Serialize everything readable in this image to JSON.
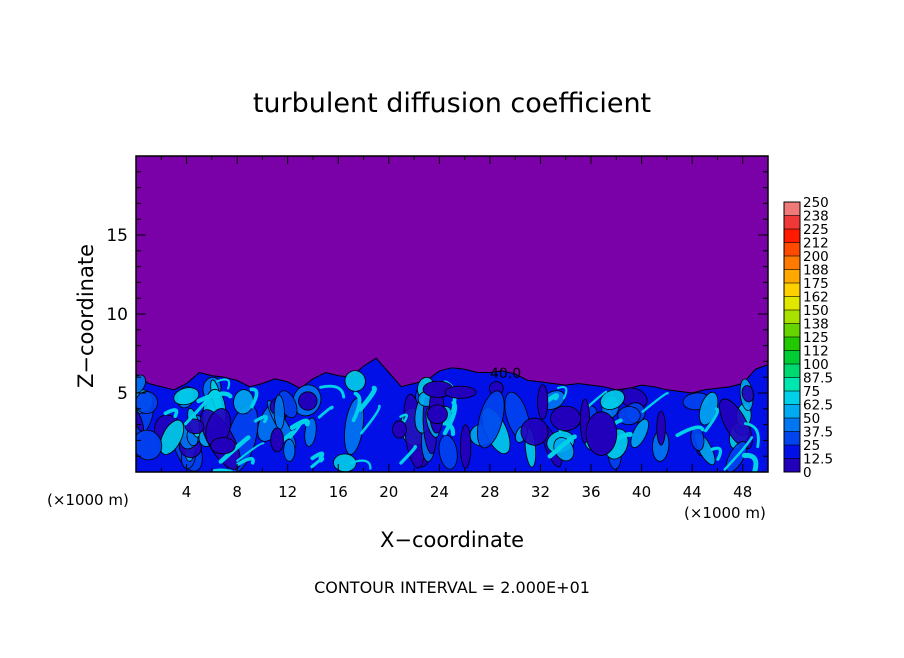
{
  "chart_data": {
    "type": "heatmap",
    "title": "turbulent diffusion coefficient",
    "xlabel": "X−coordinate",
    "ylabel": "Z−coordinate",
    "x_unit_left": "(×1000 m)",
    "x_unit_right": "(×1000 m)",
    "xlim": [
      0,
      50
    ],
    "ylim": [
      0,
      20
    ],
    "x_ticks": [
      4,
      8,
      12,
      16,
      20,
      24,
      28,
      32,
      36,
      40,
      44,
      48
    ],
    "y_ticks": [
      5,
      10,
      15
    ],
    "contour_label": "40.0",
    "footer": "CONTOUR INTERVAL = 2.000E+01",
    "colorbar": {
      "levels": [
        "0",
        "12.5",
        "25",
        "37.5",
        "50",
        "62.5",
        "75",
        "87.5",
        "100",
        "112",
        "125",
        "138",
        "150",
        "162",
        "175",
        "188",
        "200",
        "212",
        "225",
        "238",
        "250"
      ],
      "colors": [
        "#7a00a8",
        "#2200bb",
        "#0010e6",
        "#0044ee",
        "#0077f0",
        "#00aaf0",
        "#00d0e8",
        "#00e6b0",
        "#00d870",
        "#00cc33",
        "#22c800",
        "#66d400",
        "#a8e000",
        "#e0e800",
        "#ffd000",
        "#ffa800",
        "#ff7a00",
        "#ff4a00",
        "#ff1a00",
        "#f03838",
        "#f07a7a"
      ]
    },
    "turbulent_layer": {
      "profile_x": [
        0,
        1,
        2,
        3,
        4,
        5,
        6,
        7,
        8,
        9,
        10,
        11,
        12,
        13,
        14,
        15,
        16,
        17,
        18,
        19,
        20,
        21,
        22,
        23,
        24,
        25,
        26,
        27,
        28,
        29,
        30,
        31,
        32,
        33,
        34,
        35,
        36,
        37,
        38,
        39,
        40,
        41,
        42,
        43,
        44,
        45,
        46,
        47,
        48,
        49,
        50
      ],
      "top_z": [
        6.2,
        5.6,
        5.4,
        5.2,
        5.6,
        6.3,
        6.1,
        6.0,
        5.8,
        5.4,
        5.6,
        5.9,
        5.7,
        5.3,
        5.9,
        6.3,
        6.1,
        6.0,
        6.7,
        7.2,
        6.3,
        5.4,
        5.6,
        5.8,
        6.4,
        6.6,
        6.5,
        6.3,
        6.3,
        6.4,
        6.2,
        5.8,
        5.7,
        5.6,
        5.5,
        5.6,
        5.5,
        5.4,
        5.2,
        5.3,
        5.5,
        5.4,
        5.2,
        5.1,
        5.0,
        5.2,
        5.3,
        5.4,
        5.6,
        6.5,
        6.8
      ]
    }
  }
}
